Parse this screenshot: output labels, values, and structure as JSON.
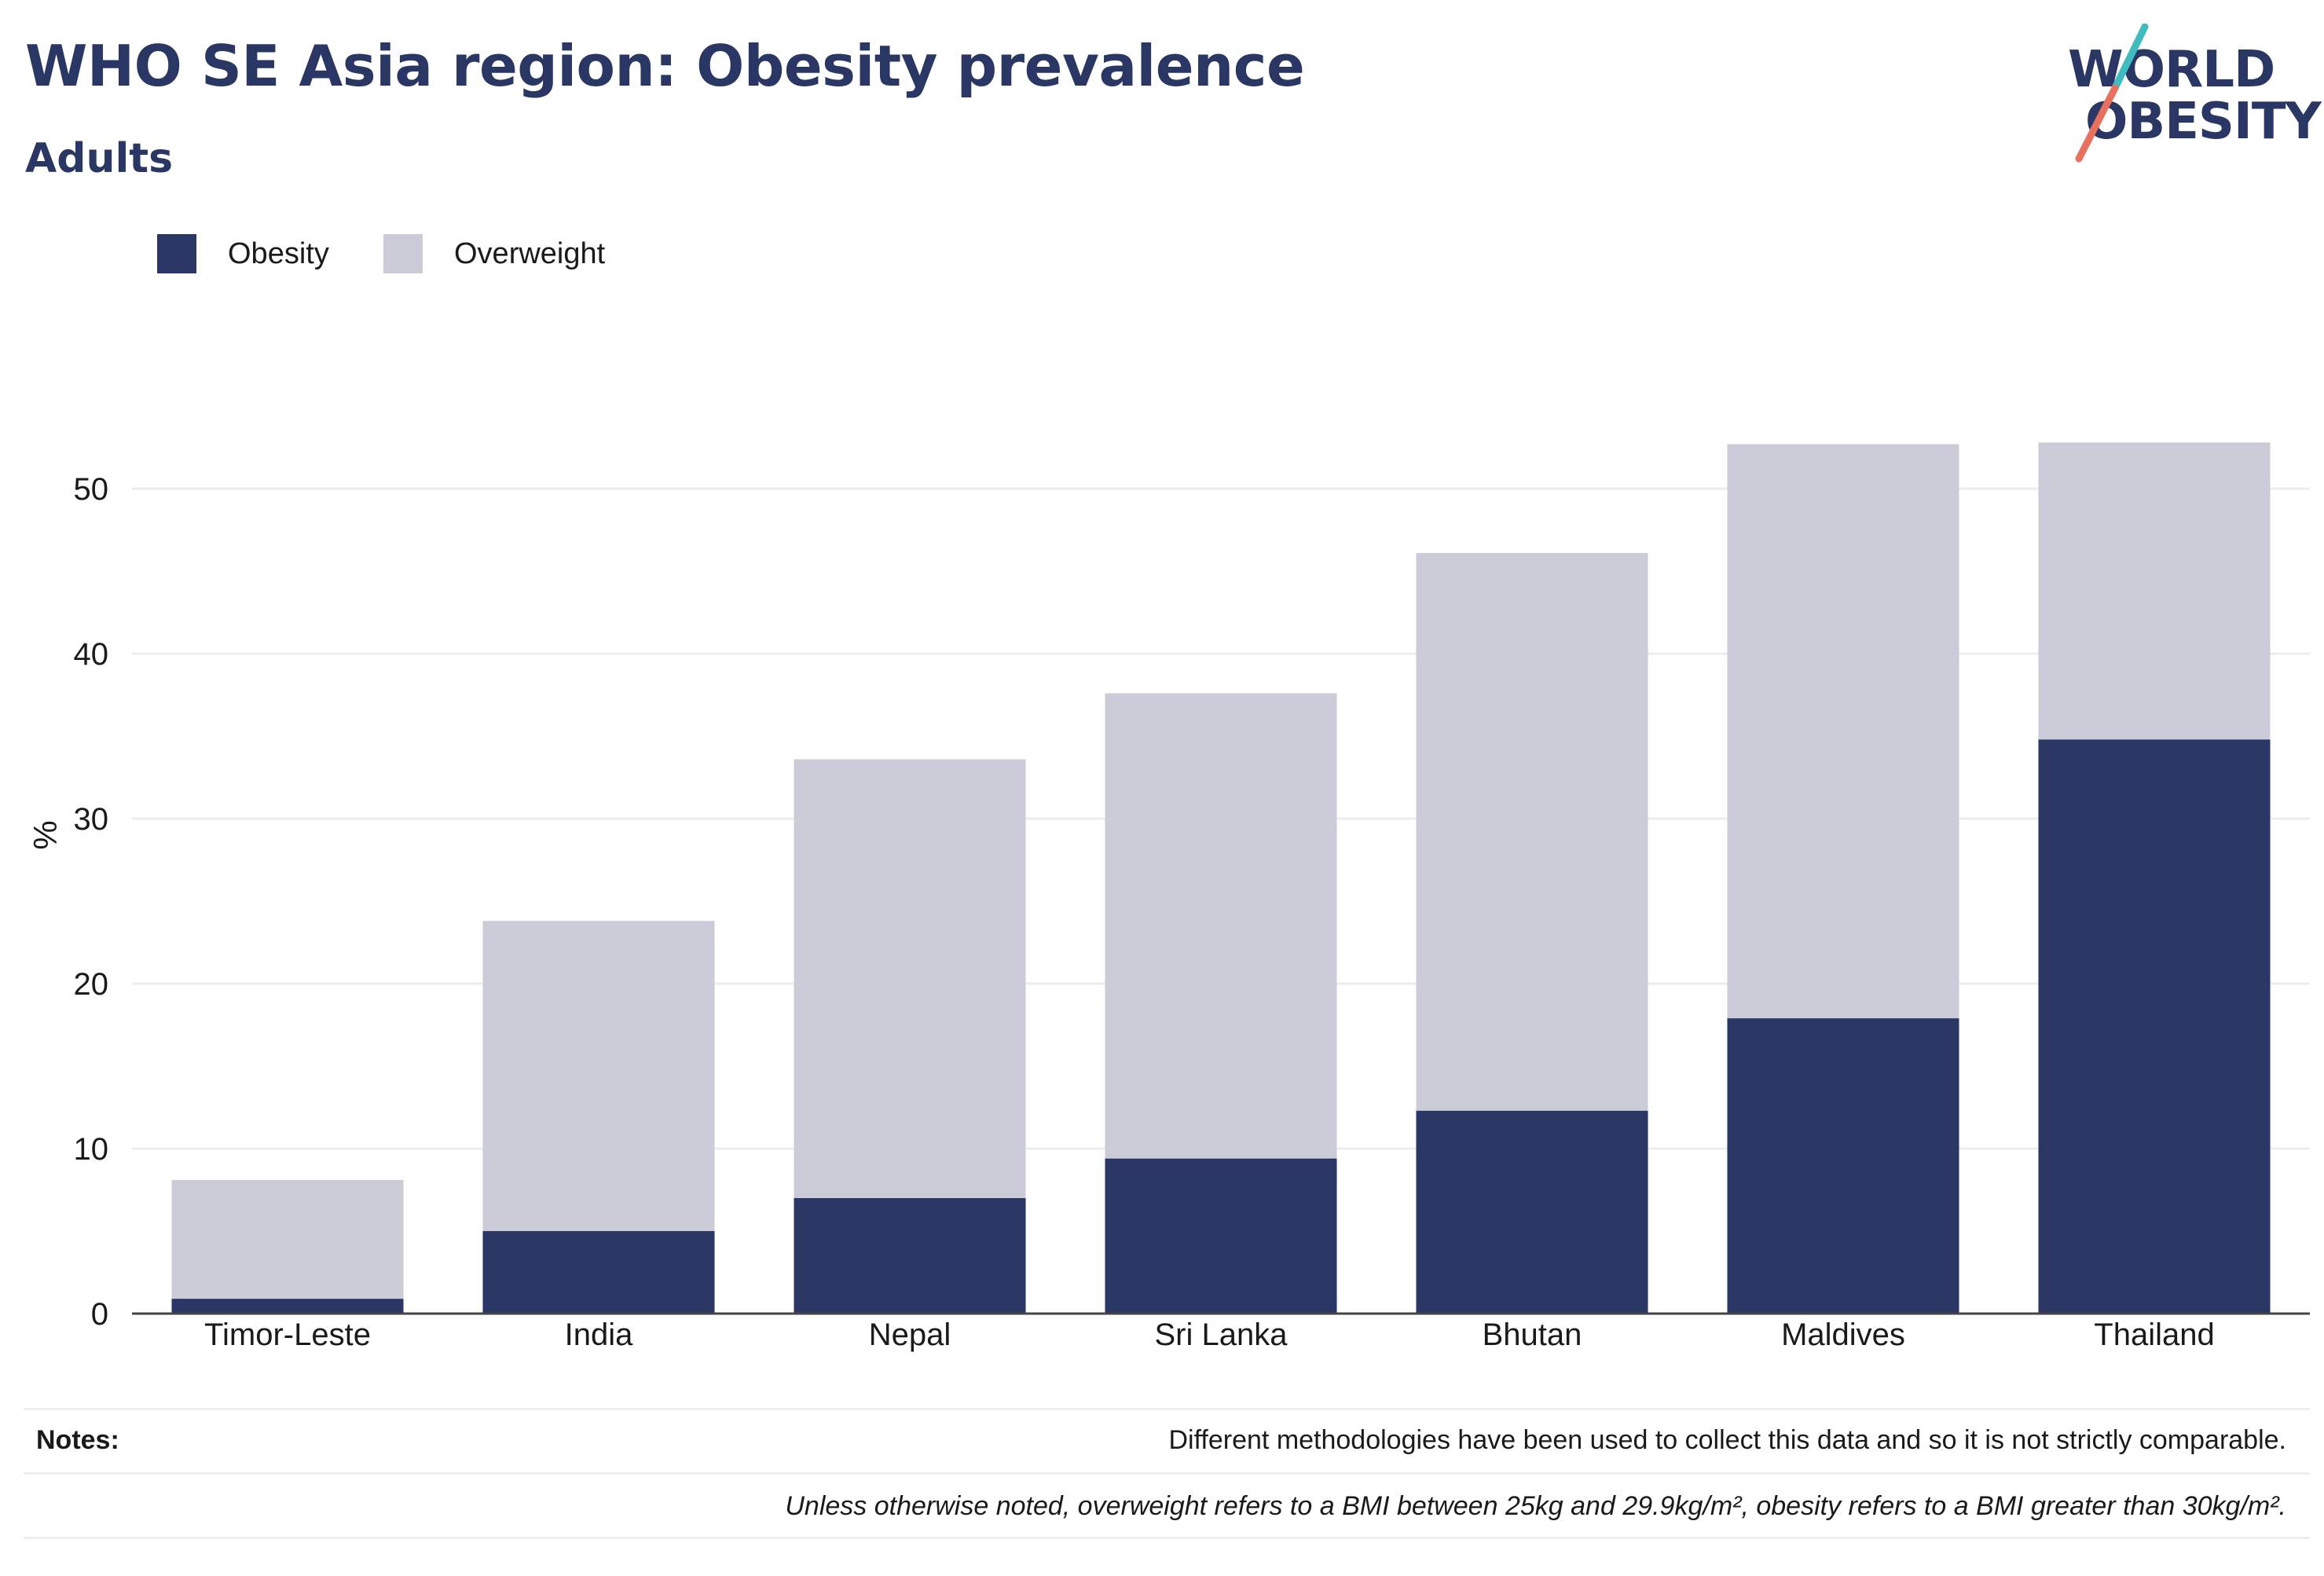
{
  "header": {
    "title": "WHO SE Asia region: Obesity prevalence",
    "subtitle": "Adults"
  },
  "logo": {
    "line1": "WORLD",
    "line2": "OBESITY",
    "colors": {
      "text": "#2a3663",
      "slash_top": "#3ebcbf",
      "slash_bottom": "#e8705e"
    }
  },
  "legend": {
    "items": [
      {
        "label": "Obesity",
        "color": "#2a3663"
      },
      {
        "label": "Overweight",
        "color": "#cbccd7"
      }
    ]
  },
  "chart_data": {
    "type": "bar",
    "stacked": true,
    "categories": [
      "Timor-Leste",
      "India",
      "Nepal",
      "Sri Lanka",
      "Bhutan",
      "Maldives",
      "Thailand"
    ],
    "series": [
      {
        "name": "Obesity",
        "color": "#2a3663",
        "values": [
          0.9,
          5.0,
          7.0,
          9.4,
          12.3,
          17.9,
          34.8
        ]
      },
      {
        "name": "Overweight",
        "color": "#cbccd7",
        "values": [
          7.2,
          18.8,
          26.6,
          28.2,
          33.8,
          34.8,
          18.0
        ]
      }
    ],
    "ylabel": "%",
    "xlabel": "",
    "ylim": [
      0,
      60
    ],
    "yticks": [
      0,
      10,
      20,
      30,
      40,
      50
    ],
    "grid": true,
    "legend_position": "top-left"
  },
  "notes": {
    "label": "Notes:",
    "items": [
      "Different methodologies have been used to collect this data and so it is not strictly comparable.",
      "Unless otherwise noted, overweight refers to a BMI between 25kg and 29.9kg/m², obesity refers to a BMI greater than 30kg/m²."
    ]
  }
}
